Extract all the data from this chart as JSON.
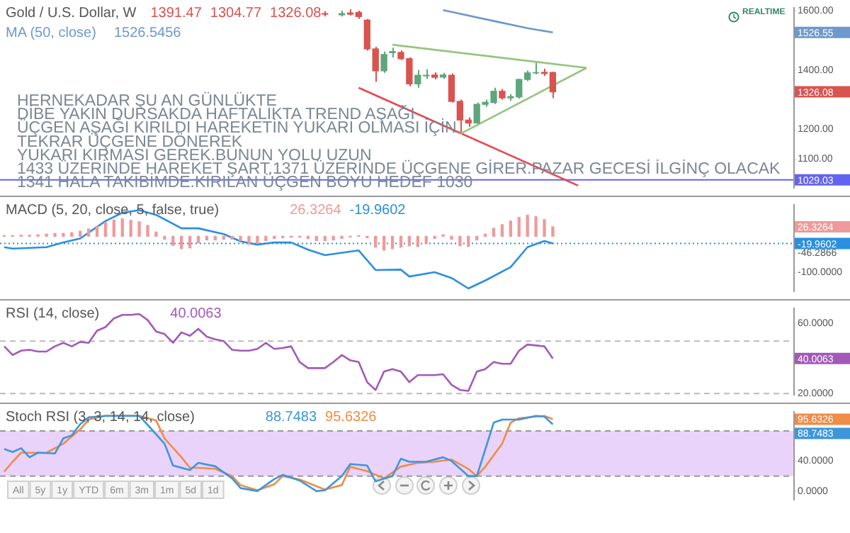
{
  "chart_data": [
    {
      "type": "candlestick",
      "title": "Gold / U.S. Dollar, W",
      "subtitle": "HERNEKADAR ŞU AN GÜNLÜKTE\nDİBE YAKIN DURSAKDA HAFTALIKTA TREND AŞAĞI\nÜÇGEN AŞAĞI KIRILDI HAREKETİN YUKARI OLMASI İÇİN\nTEKRAR ÜÇGENE DÖNEREK\nYUKARI KIRMASI GEREK.BUNUN YOLU UZUN\n1433 ÜZERİNDE HAREKET ŞART.1371 ÜZERİNDE ÜÇGENE GİRER.PAZAR GECESİ İLGİNÇ OLACAK\n1341 HALA TAKİBİMDE.KIRILAN ÜÇGEN BOYU HEDEF 1030",
      "categories": [
        null,
        null,
        null,
        null,
        null,
        null,
        null,
        null,
        null,
        null,
        null,
        null,
        null,
        null,
        null,
        null,
        null,
        null,
        null,
        null,
        null,
        null,
        null,
        null,
        null,
        null,
        null,
        null,
        null,
        null,
        null,
        null,
        null,
        null,
        null,
        null,
        null,
        null,
        null,
        null,
        null,
        null,
        null,
        null,
        null,
        null,
        null,
        null,
        null,
        null,
        null,
        null,
        null,
        null,
        null,
        null,
        null,
        null,
        null,
        null,
        null,
        null,
        null,
        null,
        null,
        null,
        null,
        null,
        null,
        null,
        null,
        null,
        null,
        null,
        null,
        null,
        null,
        null,
        null,
        null,
        null,
        null,
        null,
        null,
        null,
        null,
        null,
        null,
        null,
        null,
        null,
        null,
        null,
        null
      ],
      "series": [
        {
          "color": "#5ea67c",
          "ohlc": [
            null,
            null,
            null,
            null,
            null,
            null,
            null,
            null,
            null,
            null,
            null,
            null,
            null,
            null,
            null,
            null,
            null,
            null,
            null,
            null,
            null,
            null,
            null,
            null,
            null,
            null,
            null,
            null,
            null,
            null,
            null,
            null,
            null,
            null,
            null,
            null,
            null,
            null,
            null,
            null,
            [
              1586,
              1600,
              1580,
              1590
            ],
            null,
            null,
            null,
            null,
            [
              1397,
              1462,
              1390,
              1452
            ],
            [
              1458,
              1475,
              1442,
              1462
            ],
            null,
            null,
            [
              1353,
              1400,
              1340,
              1382
            ],
            [
              1380,
              1402,
              1370,
              1382
            ],
            null,
            [
              1376,
              1390,
              1370,
              1383
            ],
            null,
            null,
            null,
            [
              1221,
              1290,
              1212,
              1284
            ],
            [
              1284,
              1300,
              1276,
              1291
            ],
            [
              1290,
              1340,
              1285,
              1328
            ],
            null,
            [
              1306,
              1318,
              1296,
              1310
            ],
            [
              1309,
              1370,
              1303,
              1368
            ],
            [
              1368,
              1398,
              1362,
              1390
            ],
            [
              1390,
              1426,
              1385,
              1391
            ],
            null,
            null,
            null,
            null,
            null,
            null,
            null,
            null,
            null,
            null,
            null,
            null,
            null,
            null,
            null,
            null,
            null,
            null,
            null,
            null,
            null,
            null,
            null,
            null,
            null,
            null,
            null,
            null,
            null,
            null
          ]
        },
        {
          "color": "#d9534f",
          "ohlc": [
            null,
            null,
            null,
            null,
            null,
            null,
            null,
            null,
            null,
            null,
            null,
            null,
            null,
            null,
            null,
            null,
            null,
            null,
            null,
            null,
            null,
            null,
            null,
            null,
            null,
            null,
            null,
            null,
            null,
            null,
            null,
            null,
            null,
            null,
            null,
            null,
            null,
            null,
            [
              1590,
              1598,
              1580,
              1588
            ],
            null,
            null,
            [
              1592,
              1604,
              1584,
              1588
            ],
            [
              1594,
              1600,
              1572,
              1580
            ],
            [
              1568,
              1572,
              1465,
              1471
            ],
            [
              1471,
              1478,
              1360,
              1397
            ],
            null,
            null,
            [
              1459,
              1466,
              1433,
              1438
            ],
            [
              1438,
              1442,
              1345,
              1353
            ],
            null,
            null,
            [
              1383,
              1392,
              1368,
              1375
            ],
            null,
            [
              1382,
              1388,
              1290,
              1294
            ],
            [
              1294,
              1300,
              1184,
              1231
            ],
            [
              1231,
              1240,
              1208,
              1221
            ],
            null,
            null,
            null,
            [
              1328,
              1336,
              1300,
              1306
            ],
            null,
            null,
            null,
            null,
            [
              1392,
              1404,
              1380,
              1388
            ],
            [
              1391.47,
              1394,
              1304.77,
              1326.08
            ],
            null,
            null,
            null,
            null,
            null,
            null,
            null,
            null,
            null,
            null,
            null,
            null,
            null,
            null,
            null,
            null,
            null,
            null,
            null,
            null,
            null,
            null,
            null,
            null,
            null,
            null,
            null,
            null
          ]
        },
        {
          "type": "line",
          "name": "MA (50, close)",
          "color": "#6f98cc",
          "values": [
            null,
            null,
            null,
            null,
            null,
            null,
            null,
            null,
            null,
            null,
            null,
            null,
            null,
            null,
            null,
            null,
            null,
            null,
            null,
            null,
            null,
            null,
            null,
            null,
            null,
            null,
            null,
            null,
            null,
            null,
            null,
            null,
            null,
            null,
            null,
            null,
            null,
            null,
            null,
            null,
            null,
            null,
            null,
            null,
            null,
            null,
            null,
            null,
            null,
            null,
            null,
            null,
            1602,
            null,
            null,
            null,
            null,
            null,
            1565,
            null,
            null,
            null,
            1541,
            null,
            null,
            1526.55,
            null,
            null,
            null,
            null,
            null,
            null,
            null,
            null,
            null,
            null,
            null,
            null,
            null,
            null,
            null,
            null,
            null,
            null,
            null,
            null,
            null,
            null,
            null,
            null,
            null,
            null,
            null,
            null
          ]
        },
        {
          "type": "line",
          "color": "#95c57f",
          "values": [
            null,
            null,
            null,
            null,
            null,
            null,
            null,
            null,
            null,
            null,
            null,
            null,
            null,
            null,
            null,
            null,
            null,
            null,
            null,
            null,
            null,
            null,
            null,
            null,
            null,
            null,
            null,
            null,
            null,
            null,
            null,
            null,
            null,
            null,
            null,
            null,
            null,
            null,
            null,
            null,
            null,
            null,
            null,
            null,
            null,
            null,
            1485,
            null,
            null,
            null,
            null,
            null,
            null,
            null,
            null,
            null,
            null,
            null,
            null,
            null,
            null,
            null,
            null,
            null,
            null,
            null,
            null,
            null,
            null,
            1407,
            null,
            null,
            null,
            null,
            null,
            null,
            null,
            null,
            null,
            null,
            null,
            null,
            null,
            null,
            null,
            null,
            null,
            null,
            null,
            null,
            null,
            null,
            null,
            null
          ]
        },
        {
          "type": "line",
          "color": "#95c57f",
          "values": [
            null,
            null,
            null,
            null,
            null,
            null,
            null,
            null,
            null,
            null,
            null,
            null,
            null,
            null,
            null,
            null,
            null,
            null,
            null,
            null,
            null,
            null,
            null,
            null,
            null,
            null,
            null,
            null,
            null,
            null,
            null,
            null,
            null,
            null,
            null,
            null,
            null,
            null,
            null,
            null,
            null,
            null,
            null,
            null,
            null,
            null,
            null,
            null,
            null,
            null,
            null,
            null,
            null,
            null,
            1184,
            null,
            null,
            null,
            null,
            null,
            null,
            null,
            null,
            null,
            null,
            null,
            null,
            null,
            null,
            1407,
            null,
            null,
            null,
            null,
            null,
            null,
            null,
            null,
            null,
            null,
            null,
            null,
            null,
            null,
            null,
            null,
            null,
            null,
            null,
            null,
            null,
            null,
            null,
            null
          ]
        },
        {
          "type": "line",
          "color": "#e8474f",
          "values": [
            null,
            null,
            null,
            null,
            null,
            null,
            null,
            null,
            null,
            null,
            null,
            null,
            null,
            null,
            null,
            null,
            null,
            null,
            null,
            null,
            null,
            null,
            null,
            null,
            null,
            null,
            null,
            null,
            null,
            null,
            null,
            null,
            null,
            null,
            null,
            null,
            null,
            null,
            null,
            null,
            null,
            null,
            1340,
            null,
            null,
            null,
            null,
            null,
            null,
            null,
            null,
            null,
            null,
            null,
            null,
            null,
            null,
            null,
            null,
            null,
            null,
            null,
            null,
            null,
            null,
            null,
            null,
            null,
            1010,
            null,
            null,
            null,
            null,
            null,
            null,
            null,
            null,
            null,
            null,
            null,
            null,
            null,
            null,
            null,
            null,
            null,
            null,
            null,
            null,
            null,
            null,
            null,
            null,
            null
          ]
        }
      ],
      "ylim": [
        1001,
        1611
      ],
      "yticks": [
        {
          "value": 1100,
          "label": "1100.00"
        },
        {
          "value": 1200,
          "label": "1200.00"
        },
        {
          "value": 1400,
          "label": "1400.00"
        },
        {
          "value": 1600,
          "label": "1600.00"
        }
      ],
      "ref_lines": [
        {
          "axis": "y",
          "value": 1029.03,
          "color": "#6363f2"
        }
      ],
      "annotations": [
        "1391.47",
        "1304.77",
        "1326.08",
        "1526.5456",
        "REALTIME",
        "1526.55",
        "1326.08",
        "1029.03"
      ],
      "tick_labels": "y",
      "marker": "none"
    },
    {
      "type": "bar",
      "title": "MACD (5, 20, close, 5, false, true)",
      "categories": [
        null,
        null,
        null,
        null,
        null,
        null,
        null,
        null,
        null,
        null,
        null,
        null,
        null,
        null,
        null,
        null,
        null,
        null,
        null,
        null,
        null,
        null,
        null,
        null,
        null,
        null,
        null,
        null,
        null,
        null,
        null,
        null,
        null,
        null,
        null,
        null,
        null,
        null,
        null,
        null,
        null,
        null,
        null,
        null,
        null,
        null,
        null,
        null,
        null,
        null,
        null,
        null,
        null,
        null,
        null,
        null,
        null,
        null,
        null,
        null,
        null,
        null,
        null,
        null,
        null,
        null,
        null,
        null,
        null,
        null,
        null,
        null,
        null,
        null,
        null,
        null,
        null,
        null,
        null,
        null,
        null,
        null,
        null,
        null,
        null,
        null,
        null,
        null,
        null,
        null,
        null,
        null,
        null,
        null
      ],
      "series": [
        {
          "color": "#ef9a9a",
          "values": [
            2,
            2,
            3,
            3,
            4,
            6,
            8,
            8,
            10,
            14,
            20,
            28,
            38,
            45,
            48,
            44,
            40,
            30,
            12,
            -8,
            -25,
            -34,
            -32,
            -18,
            -10,
            -10,
            -8,
            -8,
            -12,
            -22,
            -18,
            -12,
            -6,
            -4,
            -2,
            -2,
            -6,
            -12,
            -12,
            -10,
            -6,
            -2,
            2,
            -4,
            -30,
            -38,
            -34,
            -30,
            -26,
            -28,
            -20,
            -6,
            4,
            -8,
            -26,
            -28,
            -10,
            6,
            22,
            32,
            42,
            52,
            58,
            54,
            46,
            26.3264,
            null,
            null,
            null,
            null,
            null,
            null,
            null,
            null,
            null,
            null,
            null,
            null,
            null,
            null,
            null,
            null,
            null,
            null,
            null,
            null,
            null,
            null,
            null,
            null,
            null,
            null,
            null,
            null
          ]
        },
        {
          "type": "line",
          "color": "#2a8fe0",
          "values": [
            -30,
            -34,
            null,
            null,
            null,
            -30,
            null,
            -17,
            null,
            -6,
            null,
            null,
            42,
            null,
            65,
            null,
            72,
            null,
            59,
            null,
            null,
            22,
            null,
            22,
            null,
            null,
            6,
            null,
            -14,
            null,
            -23,
            null,
            -17,
            null,
            -17,
            null,
            -37,
            null,
            -52,
            null,
            null,
            null,
            -39,
            null,
            -93,
            null,
            null,
            -92,
            -111,
            null,
            null,
            -99,
            null,
            -115,
            null,
            -144,
            null,
            -122,
            null,
            null,
            -85,
            null,
            -30,
            null,
            -13,
            -19.9602,
            null,
            null,
            null,
            null,
            null,
            null,
            null,
            null,
            null,
            null,
            null,
            null,
            null,
            null,
            null,
            null,
            null,
            null,
            null,
            null,
            null,
            null,
            null,
            null,
            null,
            null,
            null,
            null
          ]
        }
      ],
      "ylim": [
        -153,
        88
      ],
      "yticks": [
        {
          "value": -46.2866,
          "label": "-46.2866"
        },
        {
          "value": -100,
          "label": "-100.0000"
        }
      ],
      "ref_lines": [
        {
          "axis": "y",
          "value": -19.9602,
          "color": "#2a8fe0",
          "line_style": "dotted"
        }
      ],
      "annotations": [
        "26.3264",
        "-19.9602",
        "26.3264",
        "-19.9602"
      ],
      "tick_labels": "y",
      "marker": "none"
    },
    {
      "type": "line",
      "title": "RSI (14, close)",
      "categories": [
        null,
        null,
        null,
        null,
        null,
        null,
        null,
        null,
        null,
        null,
        null,
        null,
        null,
        null,
        null,
        null,
        null,
        null,
        null,
        null,
        null,
        null,
        null,
        null,
        null,
        null,
        null,
        null,
        null,
        null,
        null,
        null,
        null,
        null,
        null,
        null,
        null,
        null,
        null,
        null,
        null,
        null,
        null,
        null,
        null,
        null,
        null,
        null,
        null,
        null,
        null,
        null,
        null,
        null,
        null,
        null,
        null,
        null,
        null,
        null,
        null,
        null,
        null,
        null,
        null,
        null,
        null,
        null,
        null,
        null,
        null,
        null,
        null,
        null,
        null,
        null,
        null,
        null,
        null,
        null,
        null,
        null,
        null,
        null,
        null,
        null,
        null,
        null,
        null,
        null,
        null,
        null,
        null,
        null
      ],
      "series": [
        {
          "color": "#a25ab8",
          "values": [
            47,
            42,
            44.5,
            45,
            44,
            44,
            47,
            49,
            47,
            49.5,
            49,
            56,
            58,
            63,
            65,
            65,
            65.5,
            62,
            55.5,
            54,
            49,
            55,
            53,
            57,
            52.5,
            51,
            50,
            45,
            44.5,
            44.5,
            45.5,
            49,
            45.5,
            46,
            47,
            38,
            34.5,
            34.5,
            34.5,
            38,
            42,
            39,
            38,
            26.5,
            22,
            32.5,
            34,
            32.5,
            26.5,
            30.5,
            30.5,
            30.5,
            31,
            25,
            22,
            21.5,
            32.5,
            34,
            38,
            37,
            37,
            44.5,
            48,
            47.5,
            47,
            40.0063,
            null,
            null,
            null,
            null,
            null,
            null,
            null,
            null,
            null,
            null,
            null,
            null,
            null,
            null,
            null,
            null,
            null,
            null,
            null,
            null,
            null,
            null,
            null,
            null,
            null,
            null,
            null,
            null
          ]
        }
      ],
      "ylim": [
        19,
        69
      ],
      "yticks": [
        {
          "value": 60,
          "label": "60.0000"
        },
        {
          "value": 20,
          "label": "20.0000"
        }
      ],
      "ref_lines": [
        {
          "axis": "y",
          "value": 50,
          "color": "#bbbbbb",
          "line_style": "dashed"
        },
        {
          "axis": "y",
          "value": 20,
          "color": "#bbbbbb",
          "line_style": "dashed"
        }
      ],
      "annotations": [
        "40.0063",
        "40.0063"
      ],
      "tick_labels": "y",
      "marker": "none"
    },
    {
      "type": "line",
      "title": "Stoch RSI (3, 3, 14, 14, close)",
      "categories": [
        null,
        null,
        null,
        null,
        null,
        null,
        null,
        null,
        null,
        null,
        null,
        null,
        null,
        null,
        null,
        null,
        null,
        null,
        null,
        null,
        null,
        null,
        null,
        null,
        null,
        null,
        null,
        null,
        null,
        null,
        null,
        null,
        null,
        null,
        null,
        null,
        null,
        null,
        null,
        null,
        null,
        null,
        null,
        null,
        null,
        null,
        null,
        null,
        null,
        null,
        null,
        null,
        null,
        null,
        null,
        null,
        null,
        null,
        null,
        null,
        null,
        null,
        null,
        null,
        null,
        null,
        null,
        null,
        null,
        null,
        null,
        null,
        null,
        null,
        null,
        null,
        null,
        null,
        null,
        null,
        null,
        null,
        null,
        null,
        null,
        null,
        null,
        null,
        null,
        null,
        null,
        null,
        null,
        null
      ],
      "series": [
        {
          "color": "#3d96dc",
          "values": [
            56,
            52,
            57,
            45,
            51,
            null,
            50,
            70,
            74,
            89,
            98,
            99,
            100,
            100,
            100,
            100,
            100,
            88,
            null,
            63,
            34,
            null,
            28,
            37.5,
            null,
            33,
            null,
            17,
            4,
            null,
            0,
            null,
            16,
            21.5,
            null,
            14,
            null,
            0,
            1,
            null,
            20,
            36,
            null,
            34,
            13,
            null,
            20,
            43,
            39,
            null,
            39,
            null,
            45,
            40,
            null,
            20,
            20,
            null,
            91,
            95,
            null,
            95,
            null,
            100,
            99,
            88.7483,
            null,
            null,
            null,
            null,
            null,
            null,
            null,
            null,
            null,
            null,
            null,
            null,
            null,
            null,
            null,
            null,
            null,
            null,
            null,
            null,
            null,
            null,
            null,
            null,
            null,
            null,
            null,
            null
          ]
        },
        {
          "color": "#f08c46",
          "values": [
            26,
            39,
            51,
            51,
            null,
            51,
            null,
            63,
            null,
            82,
            95,
            null,
            100,
            null,
            null,
            null,
            100,
            null,
            94,
            70,
            null,
            45,
            31,
            31,
            null,
            29.5,
            null,
            20,
            8,
            null,
            1,
            null,
            9,
            20,
            null,
            15.5,
            null,
            null,
            2,
            null,
            8,
            32.5,
            null,
            26.5,
            null,
            17,
            null,
            32.5,
            null,
            37.5,
            null,
            39,
            null,
            42,
            null,
            29.5,
            20,
            32.5,
            null,
            63,
            91,
            97,
            null,
            99,
            100,
            95.6326,
            null,
            null,
            null,
            null,
            null,
            null,
            null,
            null,
            null,
            null,
            null,
            null,
            null,
            null,
            null,
            null,
            null,
            null,
            null,
            null,
            null,
            null,
            null,
            null,
            null,
            null,
            null,
            null
          ]
        }
      ],
      "ylim": [
        -12,
        106
      ],
      "yticks": [
        {
          "value": 40,
          "label": "40.0000"
        },
        {
          "value": 0,
          "label": "0.0000"
        }
      ],
      "bands": [
        {
          "axis": "y",
          "from": 20,
          "to": 80,
          "color": "#e9d3fb"
        }
      ],
      "ref_lines": [
        {
          "axis": "y",
          "value": 80,
          "color": "#999999",
          "line_style": "dashed"
        },
        {
          "axis": "y",
          "value": 20,
          "color": "#999999",
          "line_style": "dashed"
        }
      ],
      "annotations": [
        "88.7483",
        "95.6326",
        "95.6326",
        "88.7483",
        "All",
        "5y",
        "1y",
        "YTD",
        "6m",
        "3m",
        "1m",
        "5d",
        "1d"
      ],
      "tick_labels": "y",
      "marker": "none"
    }
  ]
}
